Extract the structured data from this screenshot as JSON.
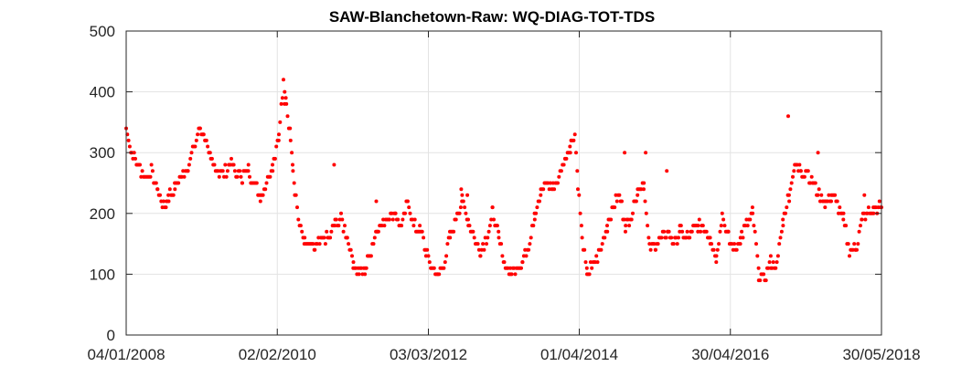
{
  "chart_data": {
    "type": "scatter",
    "title": "SAW-Blanchetown-Raw: WQ-DIAG-TOT-TDS",
    "xlabel": "",
    "ylabel": "",
    "ylim": [
      0,
      500
    ],
    "xlim": [
      "2008-01-04",
      "2018-05-30"
    ],
    "grid": true,
    "marker_color": "#ff0000",
    "y_ticks": [
      0,
      100,
      200,
      300,
      400,
      500
    ],
    "y_tick_labels": [
      "0",
      "100",
      "200",
      "300",
      "400",
      "500"
    ],
    "x_ticks": [
      "2008-01-04",
      "2010-02-02",
      "2012-03-03",
      "2014-04-01",
      "2016-04-30",
      "2018-05-30"
    ],
    "x_tick_labels": [
      "04/01/2008",
      "02/02/2010",
      "03/03/2012",
      "01/04/2014",
      "30/04/2016",
      "30/05/2018"
    ],
    "anchors": [
      [
        "2008-01-04",
        340
      ],
      [
        "2008-02-01",
        300
      ],
      [
        "2008-03-01",
        280
      ],
      [
        "2008-04-05",
        260
      ],
      [
        "2008-05-10",
        270
      ],
      [
        "2008-06-10",
        240
      ],
      [
        "2008-07-10",
        210
      ],
      [
        "2008-08-05",
        230
      ],
      [
        "2008-09-05",
        240
      ],
      [
        "2008-10-10",
        260
      ],
      [
        "2008-11-10",
        280
      ],
      [
        "2008-12-10",
        310
      ],
      [
        "2009-01-10",
        340
      ],
      [
        "2009-02-05",
        320
      ],
      [
        "2009-03-05",
        285
      ],
      [
        "2009-04-10",
        270
      ],
      [
        "2009-05-10",
        265
      ],
      [
        "2009-06-10",
        285
      ],
      [
        "2009-07-10",
        262
      ],
      [
        "2009-08-10",
        260
      ],
      [
        "2009-09-10",
        270
      ],
      [
        "2009-10-10",
        250
      ],
      [
        "2009-11-10",
        230
      ],
      [
        "2009-12-10",
        250
      ],
      [
        "2010-01-10",
        280
      ],
      [
        "2010-02-10",
        330
      ],
      [
        "2010-03-05",
        410
      ],
      [
        "2010-03-20",
        380
      ],
      [
        "2010-04-10",
        330
      ],
      [
        "2010-05-01",
        240
      ],
      [
        "2010-05-25",
        180
      ],
      [
        "2010-06-20",
        150
      ],
      [
        "2010-08-10",
        145
      ],
      [
        "2010-09-20",
        155
      ],
      [
        "2010-10-20",
        160
      ],
      [
        "2010-11-20",
        180
      ],
      [
        "2010-12-20",
        190
      ],
      [
        "2011-01-20",
        160
      ],
      [
        "2011-02-20",
        120
      ],
      [
        "2011-03-20",
        100
      ],
      [
        "2011-04-20",
        110
      ],
      [
        "2011-05-20",
        140
      ],
      [
        "2011-06-20",
        175
      ],
      [
        "2011-07-20",
        185
      ],
      [
        "2011-08-20",
        195
      ],
      [
        "2011-09-20",
        200
      ],
      [
        "2011-10-20",
        175
      ],
      [
        "2011-11-20",
        220
      ],
      [
        "2011-12-20",
        180
      ],
      [
        "2012-01-20",
        175
      ],
      [
        "2012-02-20",
        140
      ],
      [
        "2012-03-20",
        110
      ],
      [
        "2012-04-20",
        95
      ],
      [
        "2012-05-20",
        120
      ],
      [
        "2012-06-20",
        160
      ],
      [
        "2012-07-20",
        195
      ],
      [
        "2012-08-20",
        220
      ],
      [
        "2012-09-20",
        190
      ],
      [
        "2012-10-20",
        160
      ],
      [
        "2012-11-20",
        140
      ],
      [
        "2012-12-20",
        160
      ],
      [
        "2013-01-20",
        200
      ],
      [
        "2013-02-20",
        160
      ],
      [
        "2013-03-20",
        120
      ],
      [
        "2013-04-20",
        100
      ],
      [
        "2013-05-20",
        110
      ],
      [
        "2013-06-20",
        120
      ],
      [
        "2013-07-20",
        150
      ],
      [
        "2013-08-20",
        200
      ],
      [
        "2013-09-20",
        230
      ],
      [
        "2013-10-20",
        250
      ],
      [
        "2013-11-20",
        240
      ],
      [
        "2013-12-20",
        260
      ],
      [
        "2014-01-20",
        290
      ],
      [
        "2014-02-20",
        320
      ],
      [
        "2014-03-10",
        330
      ],
      [
        "2014-03-25",
        250
      ],
      [
        "2014-04-15",
        160
      ],
      [
        "2014-05-10",
        100
      ],
      [
        "2014-06-20",
        120
      ],
      [
        "2014-07-20",
        140
      ],
      [
        "2014-08-20",
        180
      ],
      [
        "2014-09-20",
        210
      ],
      [
        "2014-10-20",
        230
      ],
      [
        "2014-11-20",
        180
      ],
      [
        "2014-12-20",
        200
      ],
      [
        "2015-01-20",
        240
      ],
      [
        "2015-02-20",
        250
      ],
      [
        "2015-03-20",
        140
      ],
      [
        "2015-04-20",
        150
      ],
      [
        "2015-05-20",
        160
      ],
      [
        "2015-06-20",
        170
      ],
      [
        "2015-07-20",
        150
      ],
      [
        "2015-08-20",
        170
      ],
      [
        "2015-09-20",
        160
      ],
      [
        "2015-10-20",
        170
      ],
      [
        "2015-11-20",
        180
      ],
      [
        "2015-12-20",
        175
      ],
      [
        "2016-01-20",
        160
      ],
      [
        "2016-02-20",
        130
      ],
      [
        "2016-03-20",
        200
      ],
      [
        "2016-04-20",
        160
      ],
      [
        "2016-05-20",
        140
      ],
      [
        "2016-06-20",
        160
      ],
      [
        "2016-07-20",
        180
      ],
      [
        "2016-08-20",
        200
      ],
      [
        "2016-09-20",
        100
      ],
      [
        "2016-10-20",
        95
      ],
      [
        "2016-11-20",
        120
      ],
      [
        "2016-12-20",
        110
      ],
      [
        "2017-01-20",
        190
      ],
      [
        "2017-02-20",
        230
      ],
      [
        "2017-03-20",
        280
      ],
      [
        "2017-04-20",
        270
      ],
      [
        "2017-05-20",
        270
      ],
      [
        "2017-06-20",
        250
      ],
      [
        "2017-07-20",
        230
      ],
      [
        "2017-08-20",
        220
      ],
      [
        "2017-09-20",
        230
      ],
      [
        "2017-10-20",
        215
      ],
      [
        "2017-11-20",
        190
      ],
      [
        "2017-12-20",
        140
      ],
      [
        "2018-01-20",
        140
      ],
      [
        "2018-02-20",
        190
      ],
      [
        "2018-03-20",
        200
      ],
      [
        "2018-04-20",
        205
      ],
      [
        "2018-05-30",
        210
      ]
    ],
    "outliers": [
      [
        "2009-01-25",
        330
      ],
      [
        "2010-03-10",
        380
      ],
      [
        "2010-04-20",
        280
      ],
      [
        "2010-11-15",
        280
      ],
      [
        "2014-02-15",
        300
      ],
      [
        "2014-11-15",
        300
      ],
      [
        "2015-03-01",
        300
      ],
      [
        "2015-06-15",
        270
      ],
      [
        "2017-02-15",
        360
      ],
      [
        "2017-07-15",
        300
      ],
      [
        "2018-03-05",
        230
      ],
      [
        "2012-08-15",
        240
      ],
      [
        "2012-09-15",
        230
      ],
      [
        "2011-06-15",
        220
      ],
      [
        "2008-07-25",
        220
      ]
    ]
  }
}
